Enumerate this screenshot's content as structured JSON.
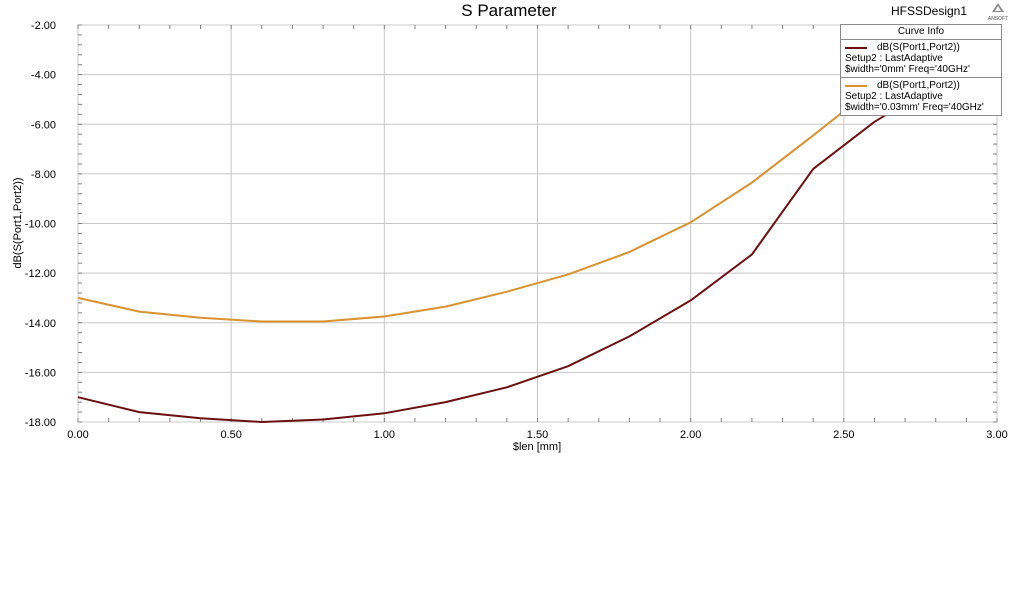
{
  "header": {
    "design_name": "HFSSDesign1",
    "logo_text": "ANSOFT"
  },
  "chart_data": {
    "type": "line",
    "title": "S Parameter",
    "xlabel": "$len [mm]",
    "ylabel": "dB(S(Port1,Port2))",
    "xlim": [
      0,
      3
    ],
    "ylim": [
      -18,
      -2
    ],
    "xticks": [
      "0.00",
      "0.50",
      "1.00",
      "1.50",
      "2.00",
      "2.50",
      "3.00"
    ],
    "yticks": [
      "-2.00",
      "-4.00",
      "-6.00",
      "-8.00",
      "-10.00",
      "-12.00",
      "-14.00",
      "-16.00",
      "-18.00"
    ],
    "grid": true,
    "legend_title": "Curve Info",
    "legend_position": "top-right",
    "series": [
      {
        "name": "dB(S(Port1,Port2))",
        "info": [
          "Setup2 : LastAdaptive",
          "$width='0mm' Freq='40GHz'"
        ],
        "color": "#6b0f0f",
        "x": [
          0.0,
          0.2,
          0.4,
          0.6,
          0.8,
          1.0,
          1.2,
          1.4,
          1.6,
          1.8,
          2.0,
          2.2,
          2.4,
          2.6,
          2.8
        ],
        "y": [
          -17.0,
          -17.6,
          -17.85,
          -18.0,
          -17.9,
          -17.65,
          -17.2,
          -16.6,
          -15.75,
          -14.55,
          -13.1,
          -11.25,
          -7.8,
          -5.9,
          -4.4
        ]
      },
      {
        "name": "dB(S(Port1,Port2))",
        "info": [
          "Setup2 : LastAdaptive",
          "$width='0.03mm' Freq='40GHz'"
        ],
        "color": "#d9922e",
        "x": [
          0.0,
          0.2,
          0.4,
          0.6,
          0.8,
          1.0,
          1.2,
          1.4,
          1.6,
          1.8,
          2.0,
          2.2,
          2.4,
          2.6,
          2.8
        ],
        "y": [
          -13.0,
          -13.55,
          -13.8,
          -13.95,
          -13.95,
          -13.75,
          -13.35,
          -12.75,
          -12.05,
          -11.15,
          -9.95,
          -8.35,
          -6.45,
          -4.5,
          -3.3
        ]
      }
    ]
  }
}
